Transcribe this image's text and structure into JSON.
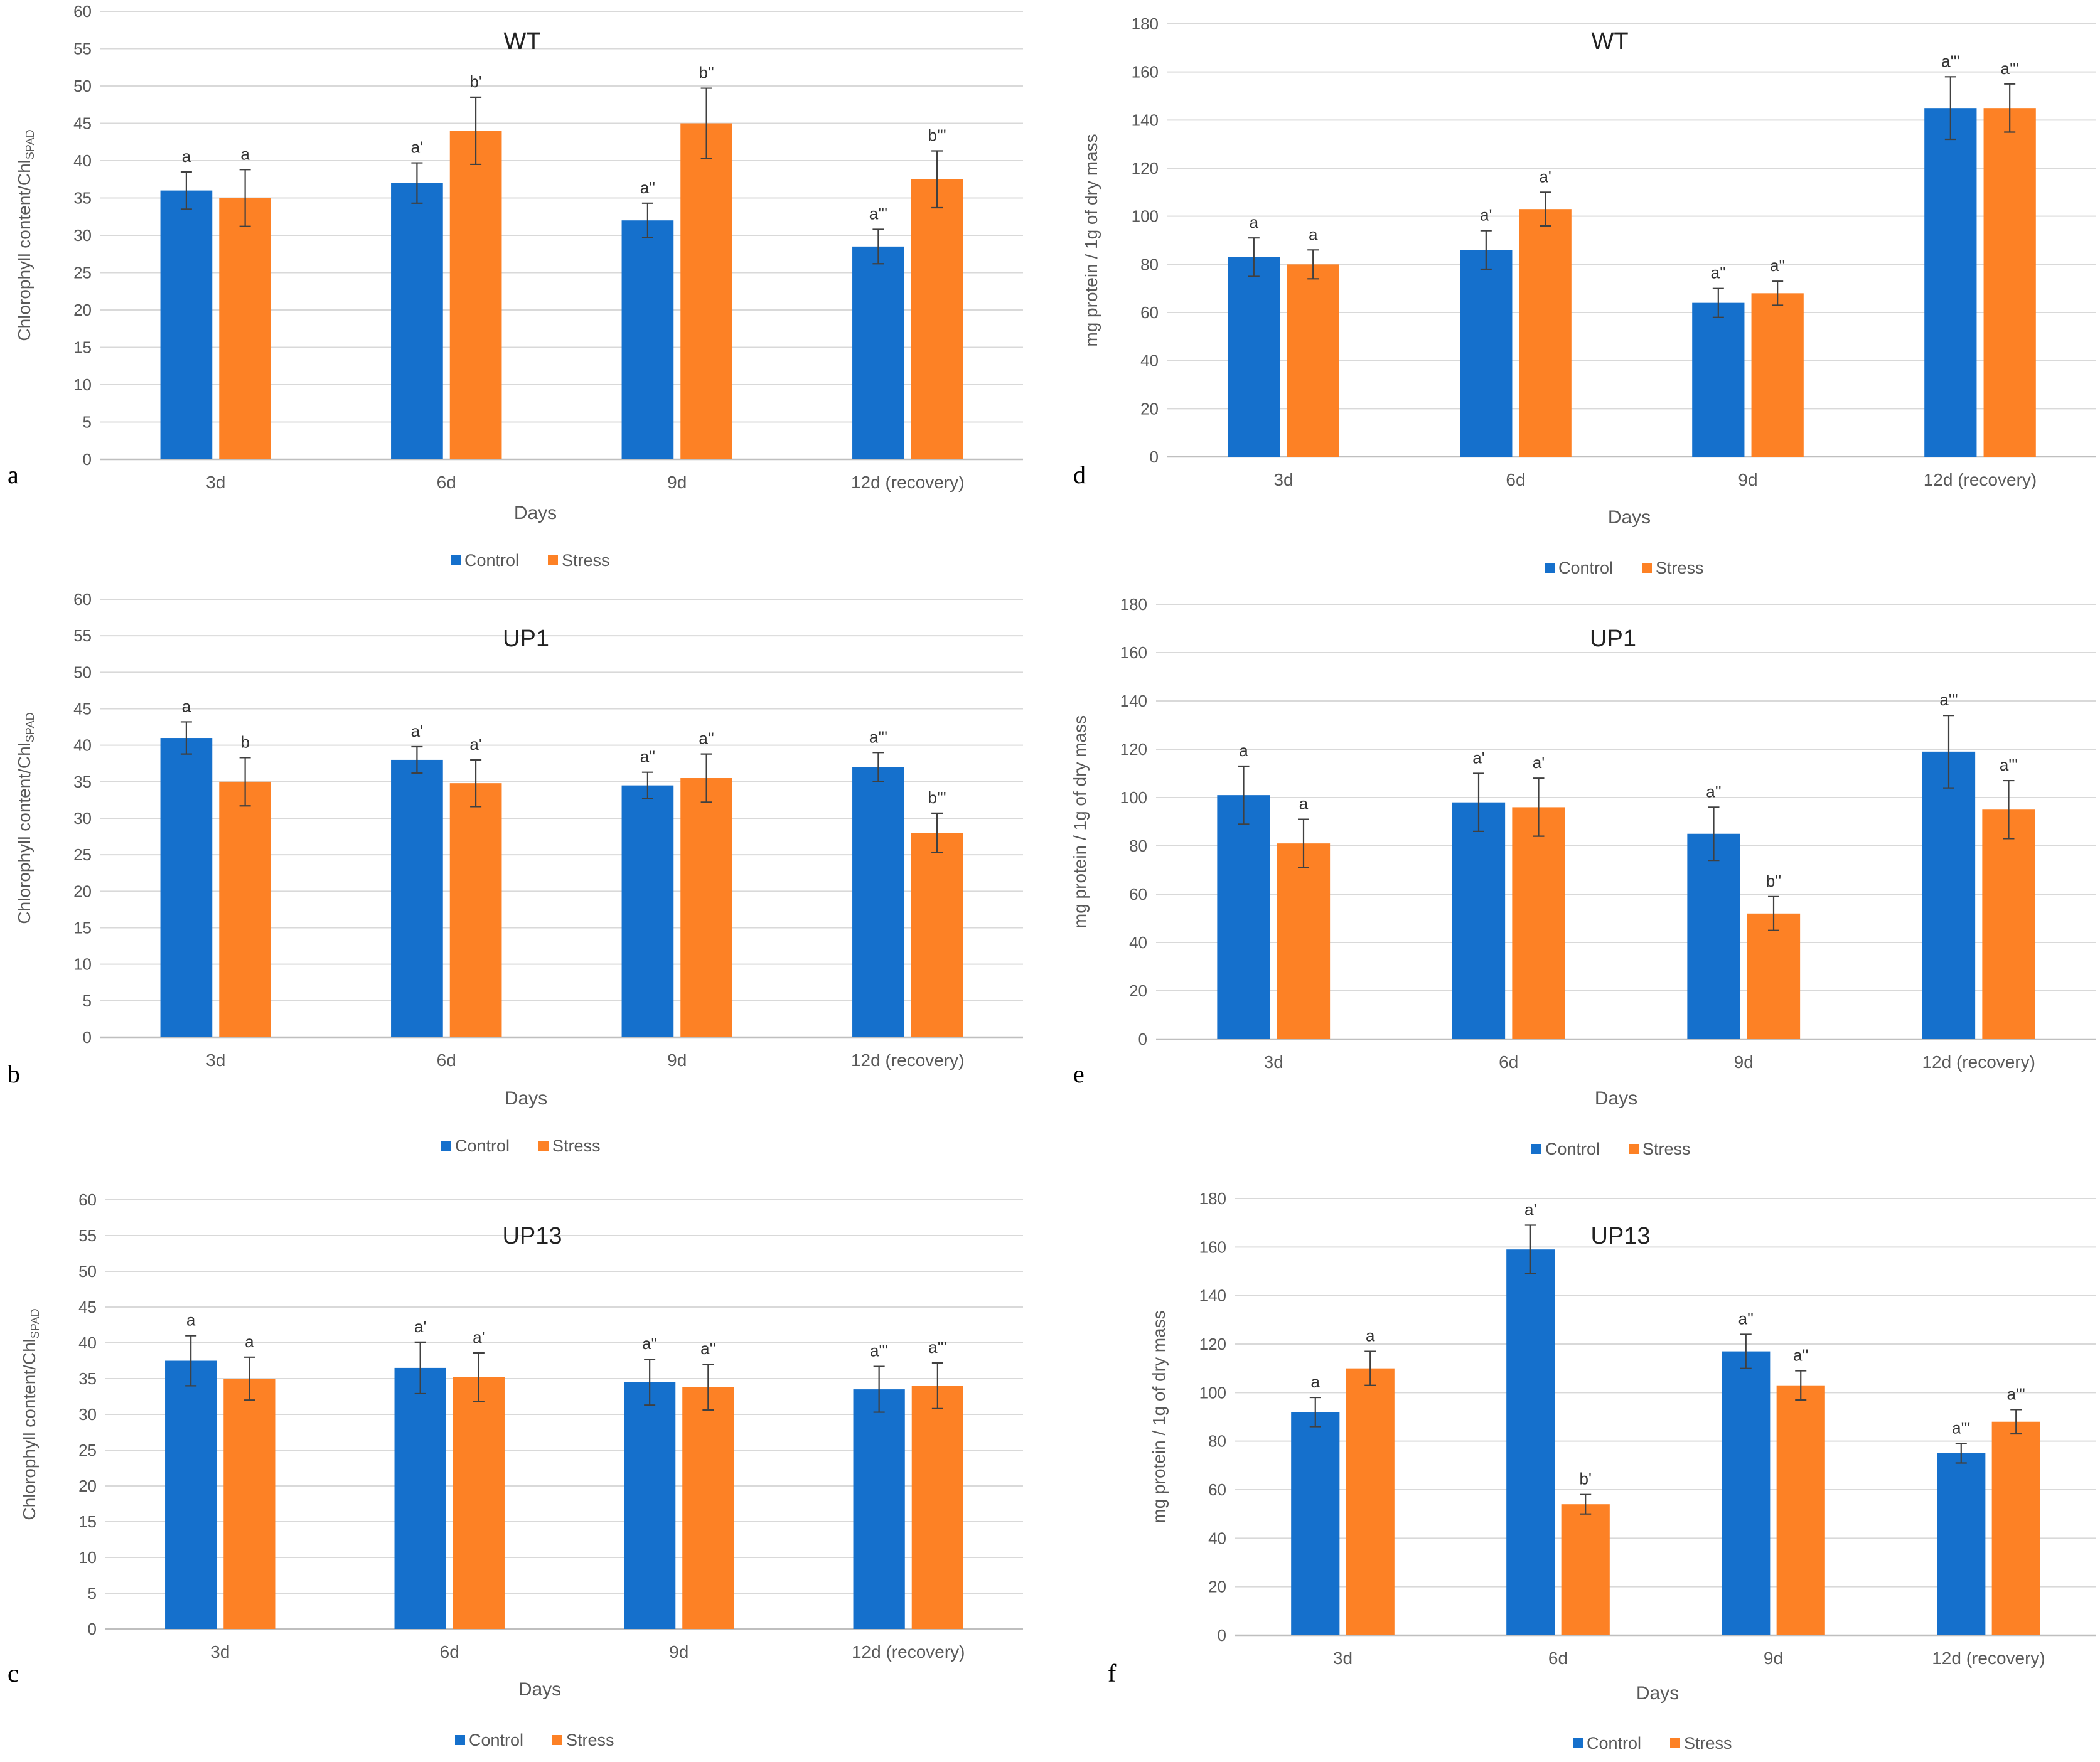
{
  "colors": {
    "control": "#1570CC",
    "stress": "#FD8125",
    "grid": "#D9D9D9",
    "axis": "#BFBFBF",
    "text": "#595959",
    "title": "#222222",
    "error": "#404040"
  },
  "chart_data": [
    {
      "panel": "a",
      "type": "bar",
      "title": "WT",
      "xlabel": "Days",
      "ylabel": "Chlorophyll content/Chl",
      "ylabel_sub": "SPAD",
      "ylim": [
        0,
        60
      ],
      "ystep": 5,
      "categories": [
        "3d",
        "6d",
        "9d",
        "12d (recovery)"
      ],
      "series": [
        {
          "name": "Control",
          "values": [
            36,
            37,
            32,
            28.5
          ],
          "errors": [
            2.5,
            2.7,
            2.3,
            2.3
          ],
          "labels": [
            "a",
            "a'",
            "a''",
            "a'''"
          ]
        },
        {
          "name": "Stress",
          "values": [
            35,
            44,
            45,
            37.5
          ],
          "errors": [
            3.8,
            4.5,
            4.7,
            3.8
          ],
          "labels": [
            "a",
            "b'",
            "b''",
            "b'''"
          ]
        }
      ]
    },
    {
      "panel": "b",
      "type": "bar",
      "title": "UP1",
      "xlabel": "Days",
      "ylabel": "Chlorophyll content/Chl",
      "ylabel_sub": "SPAD",
      "ylim": [
        0,
        60
      ],
      "ystep": 5,
      "categories": [
        "3d",
        "6d",
        "9d",
        "12d (recovery)"
      ],
      "series": [
        {
          "name": "Control",
          "values": [
            41,
            38,
            34.5,
            37
          ],
          "errors": [
            2.2,
            1.8,
            1.8,
            2
          ],
          "labels": [
            "a",
            "a'",
            "a''",
            "a'''"
          ]
        },
        {
          "name": "Stress",
          "values": [
            35,
            34.8,
            35.5,
            28
          ],
          "errors": [
            3.3,
            3.2,
            3.3,
            2.7
          ],
          "labels": [
            "b",
            "a'",
            "a''",
            "b'''"
          ]
        }
      ]
    },
    {
      "panel": "c",
      "type": "bar",
      "title": "UP13",
      "xlabel": "Days",
      "ylabel": "Chlorophyll content/Chl",
      "ylabel_sub": "SPAD",
      "ylim": [
        0,
        60
      ],
      "ystep": 5,
      "categories": [
        "3d",
        "6d",
        "9d",
        "12d (recovery)"
      ],
      "series": [
        {
          "name": "Control",
          "values": [
            37.5,
            36.5,
            34.5,
            33.5
          ],
          "errors": [
            3.5,
            3.6,
            3.2,
            3.2
          ],
          "labels": [
            "a",
            "a'",
            "a''",
            "a'''"
          ]
        },
        {
          "name": "Stress",
          "values": [
            35,
            35.2,
            33.8,
            34
          ],
          "errors": [
            3,
            3.4,
            3.2,
            3.2
          ],
          "labels": [
            "a",
            "a'",
            "a''",
            "a'''"
          ]
        }
      ]
    },
    {
      "panel": "d",
      "type": "bar",
      "title": "WT",
      "xlabel": "Days",
      "ylabel": "mg protein / 1g of dry mass",
      "ylabel_sub": "",
      "ylim": [
        0,
        180
      ],
      "ystep": 20,
      "categories": [
        "3d",
        "6d",
        "9d",
        "12d (recovery)"
      ],
      "series": [
        {
          "name": "Control",
          "values": [
            83,
            86,
            64,
            145
          ],
          "errors": [
            8,
            8,
            6,
            13
          ],
          "labels": [
            "a",
            "a'",
            "a''",
            "a'''"
          ]
        },
        {
          "name": "Stress",
          "values": [
            80,
            103,
            68,
            145
          ],
          "errors": [
            6,
            7,
            5,
            10
          ],
          "labels": [
            "a",
            "a'",
            "a''",
            "a'''"
          ]
        }
      ]
    },
    {
      "panel": "e",
      "type": "bar",
      "title": "UP1",
      "xlabel": "Days",
      "ylabel": "mg protein / 1g of dry mass",
      "ylabel_sub": "",
      "ylim": [
        0,
        180
      ],
      "ystep": 20,
      "categories": [
        "3d",
        "6d",
        "9d",
        "12d (recovery)"
      ],
      "series": [
        {
          "name": "Control",
          "values": [
            101,
            98,
            85,
            119
          ],
          "errors": [
            12,
            12,
            11,
            15
          ],
          "labels": [
            "a",
            "a'",
            "a''",
            "a'''"
          ]
        },
        {
          "name": "Stress",
          "values": [
            81,
            96,
            52,
            95
          ],
          "errors": [
            10,
            12,
            7,
            12
          ],
          "labels": [
            "a",
            "a'",
            "b''",
            "a'''"
          ]
        }
      ]
    },
    {
      "panel": "f",
      "type": "bar",
      "title": "UP13",
      "xlabel": "Days",
      "ylabel": "mg protein / 1g of dry mass",
      "ylabel_sub": "",
      "ylim": [
        0,
        180
      ],
      "ystep": 20,
      "categories": [
        "3d",
        "6d",
        "9d",
        "12d (recovery)"
      ],
      "series": [
        {
          "name": "Control",
          "values": [
            92,
            159,
            117,
            75
          ],
          "errors": [
            6,
            10,
            7,
            4
          ],
          "labels": [
            "a",
            "a'",
            "a''",
            "a'''"
          ]
        },
        {
          "name": "Stress",
          "values": [
            110,
            54,
            103,
            88
          ],
          "errors": [
            7,
            4,
            6,
            5
          ],
          "labels": [
            "a",
            "b'",
            "a''",
            "a'''"
          ]
        }
      ]
    }
  ]
}
